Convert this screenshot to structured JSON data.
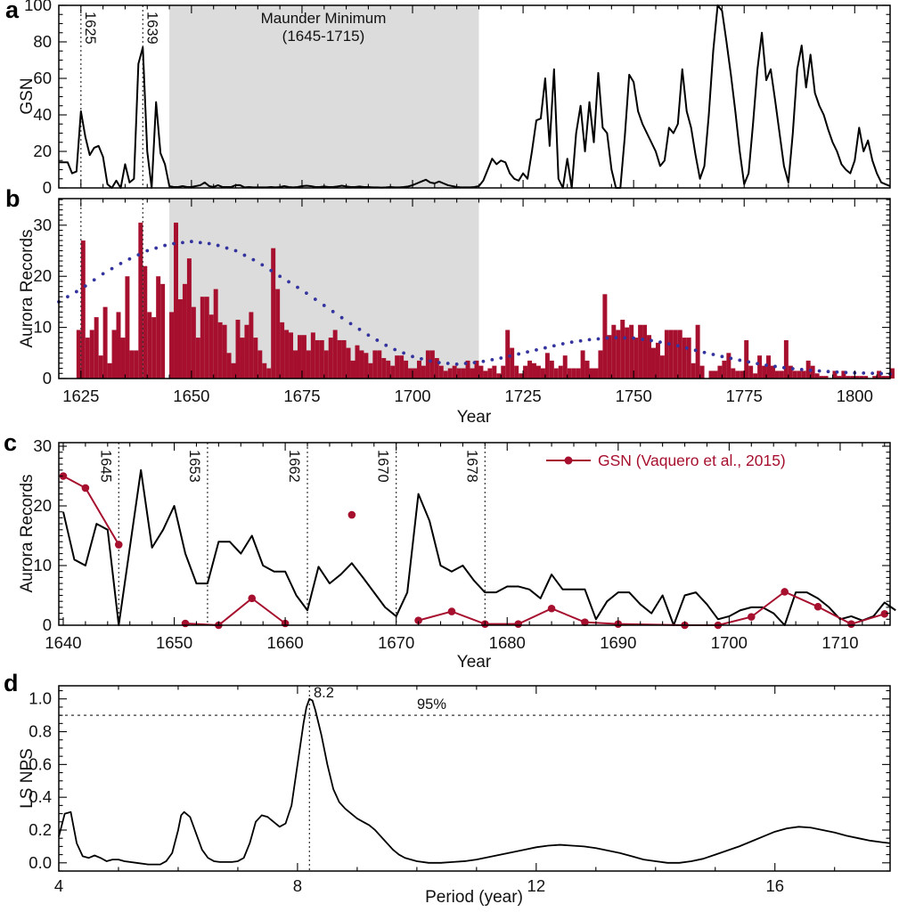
{
  "labels": {
    "panel_a": "a",
    "panel_b": "b",
    "panel_c": "c",
    "panel_d": "d",
    "ylabel_a": "GSN",
    "ylabel_b": "Aurora Records",
    "ylabel_c": "Aurora Records",
    "ylabel_d": "LS NPS",
    "xlabel_b": "Year",
    "xlabel_c": "Year",
    "xlabel_d": "Period (year)",
    "maunder_line1": "Maunder Minimum",
    "maunder_line2": "(1645-1715)",
    "legend_gsn": "GSN (Vaquero et al., 2015)",
    "peak_label": "8.2",
    "significance_label": "95%"
  },
  "colors": {
    "crimson": "#a60f2d",
    "blue": "#34349e",
    "shade": "#dcdcdc",
    "line": "#000000",
    "dash": "#333333"
  },
  "chart_data": [
    {
      "id": "a",
      "type": "line",
      "ylabel": "GSN",
      "xlim": [
        1620,
        1808
      ],
      "ylim": [
        0,
        100
      ],
      "xticks": [
        1625,
        1650,
        1675,
        1700,
        1725,
        1750,
        1775,
        1800
      ],
      "xminor": 5,
      "yticks": [
        0,
        20,
        40,
        60,
        80,
        100
      ],
      "yminor": 5,
      "vlines": [
        {
          "x": 1625,
          "label": "1625"
        },
        {
          "x": 1639,
          "label": "1639"
        }
      ],
      "shading": {
        "from": 1645,
        "to": 1715,
        "label": "Maunder Minimum (1645-1715)"
      },
      "series": {
        "start_year": 1620,
        "values": [
          14,
          14,
          14,
          8,
          9,
          42,
          28,
          18,
          22,
          23,
          17,
          2,
          0,
          4,
          0,
          13,
          3,
          5,
          68,
          77,
          20,
          0,
          47,
          19,
          13,
          1,
          0.5,
          0.5,
          1,
          0.5,
          0.5,
          1,
          1.5,
          3,
          1,
          0.5,
          1.5,
          0.5,
          0.5,
          0.5,
          1.5,
          1.5,
          0.3,
          0.5,
          0.3,
          0.3,
          0.3,
          0.3,
          0.5,
          0.3,
          0.5,
          1,
          0.5,
          0.3,
          0.5,
          1,
          1.2,
          1,
          0.5,
          0.5,
          0.8,
          0.5,
          0.5,
          0.8,
          1.2,
          0.8,
          0.5,
          0.5,
          0.8,
          0.5,
          0.5,
          0.3,
          0.3,
          0.2,
          0.3,
          0.5,
          0.3,
          0.3,
          0.5,
          0.8,
          1.5,
          2.5,
          3.5,
          4.5,
          3,
          2.5,
          3.5,
          2.5,
          1.5,
          1,
          0.5,
          0.3,
          0.3,
          0.3,
          0.5,
          1,
          4,
          10,
          16,
          13,
          15,
          14,
          8,
          5,
          4,
          8,
          5,
          20,
          37,
          38,
          60,
          23,
          65,
          5,
          0,
          16,
          0,
          30,
          45,
          20,
          47,
          25,
          63,
          33,
          30,
          10,
          0,
          0,
          28,
          62,
          58,
          42,
          35,
          30,
          25,
          20,
          12,
          15,
          33,
          30,
          35,
          65,
          42,
          33,
          18,
          5,
          12,
          40,
          75,
          100,
          97,
          80,
          62,
          42,
          20,
          2,
          8,
          35,
          65,
          85,
          59,
          65,
          48,
          30,
          12,
          3,
          30,
          65,
          78,
          55,
          73,
          52,
          45,
          40,
          32,
          25,
          20,
          13,
          10,
          8,
          15,
          33,
          20,
          26,
          15,
          8,
          3,
          2,
          1
        ]
      }
    },
    {
      "id": "b",
      "type": "bar",
      "ylabel": "Aurora Records",
      "xlabel": "Year",
      "xlim": [
        1620,
        1808
      ],
      "ylim": [
        0,
        35.2
      ],
      "xticks": [
        1625,
        1650,
        1675,
        1700,
        1725,
        1750,
        1775,
        1800
      ],
      "xminor": 5,
      "yticks": [
        0,
        10,
        20,
        30
      ],
      "yminor": 1,
      "vlines": [
        {
          "x": 1625,
          "label": ""
        },
        {
          "x": 1639,
          "label": ""
        }
      ],
      "shading": {
        "from": 1645,
        "to": 1715
      },
      "bars": {
        "start_year": 1624,
        "values": [
          9.5,
          27,
          8,
          9.5,
          12,
          4.5,
          14,
          3,
          9.5,
          13,
          8,
          20,
          5.5,
          5.5,
          30.5,
          22,
          13,
          12,
          20,
          18.5,
          0,
          13,
          30.5,
          15.5,
          18.5,
          23.5,
          14,
          8,
          16,
          16,
          12.5,
          17.5,
          11,
          10.5,
          5,
          3,
          11.5,
          8,
          10.5,
          13,
          8,
          5.5,
          3,
          2,
          25.5,
          17.5,
          11,
          9.5,
          9,
          5.5,
          8.5,
          8.5,
          5.5,
          9,
          7.5,
          7.5,
          5.5,
          8,
          9.5,
          7.5,
          7.5,
          6,
          3.5,
          6.5,
          5.5,
          5,
          3,
          5.5,
          5.5,
          4,
          3.5,
          2.5,
          4.5,
          4.5,
          3.5,
          2,
          2,
          3.5,
          2.5,
          5.5,
          5.5,
          4,
          2.5,
          1.5,
          2,
          2.5,
          2,
          2,
          3.5,
          2,
          3.5,
          2.5,
          1.5,
          2,
          2.5,
          1,
          2.5,
          9.5,
          6,
          2.5,
          1,
          2.5,
          3.5,
          3,
          2.5,
          2,
          5,
          3.5,
          2,
          2.5,
          4.5,
          2,
          2,
          2,
          5.5,
          3.5,
          2,
          2,
          5.5,
          16.5,
          8.5,
          10.5,
          9.5,
          11.5,
          10,
          10.5,
          8,
          10.5,
          10.5,
          8.5,
          6,
          7,
          4.5,
          9.5,
          9.5,
          9.5,
          9.5,
          8,
          8,
          3,
          10.5,
          2.5,
          0,
          1.5,
          1.5,
          2.5,
          3.5,
          5,
          2,
          1.5,
          1.5,
          7.5,
          2.5,
          1,
          4.5,
          2.5,
          4.5,
          2.5,
          1.5,
          1.5,
          7.5,
          2.5,
          1.5,
          1.5,
          1.5,
          3.5,
          2.5,
          1,
          0.5,
          0.5,
          0,
          1.5,
          0.5,
          1.5,
          0.5,
          0.5,
          0.5,
          0.5,
          0.5,
          0,
          0.5,
          1.5,
          0.5,
          0.5,
          2
        ]
      },
      "dotted_line": {
        "anchors": [
          [
            1620,
            15
          ],
          [
            1625,
            17.5
          ],
          [
            1630,
            20.5
          ],
          [
            1635,
            23
          ],
          [
            1640,
            25
          ],
          [
            1645,
            26.3
          ],
          [
            1650,
            26.8
          ],
          [
            1655,
            26.3
          ],
          [
            1660,
            25
          ],
          [
            1665,
            22.8
          ],
          [
            1670,
            20
          ],
          [
            1675,
            17.3
          ],
          [
            1680,
            14.3
          ],
          [
            1685,
            11.3
          ],
          [
            1690,
            8.5
          ],
          [
            1695,
            6
          ],
          [
            1700,
            4.3
          ],
          [
            1705,
            3.2
          ],
          [
            1710,
            2.8
          ],
          [
            1715,
            3.2
          ],
          [
            1720,
            4
          ],
          [
            1725,
            5
          ],
          [
            1730,
            6
          ],
          [
            1735,
            7
          ],
          [
            1740,
            7.6
          ],
          [
            1745,
            8
          ],
          [
            1750,
            7.9
          ],
          [
            1755,
            7.3
          ],
          [
            1760,
            6.4
          ],
          [
            1765,
            5.3
          ],
          [
            1770,
            4.3
          ],
          [
            1775,
            3.4
          ],
          [
            1780,
            2.6
          ],
          [
            1785,
            2
          ],
          [
            1790,
            1.6
          ],
          [
            1795,
            1.3
          ],
          [
            1800,
            1.1
          ],
          [
            1805,
            1
          ],
          [
            1808,
            0.9
          ]
        ]
      }
    },
    {
      "id": "c",
      "type": "line",
      "ylabel": "Aurora Records",
      "xlabel": "Year",
      "xlim": [
        1639.6,
        1714.5
      ],
      "ylim": [
        0,
        30.6
      ],
      "xticks": [
        1640,
        1650,
        1660,
        1670,
        1680,
        1690,
        1700,
        1710
      ],
      "xminor": 2,
      "yticks": [
        0,
        10,
        20,
        30
      ],
      "yminor": 1,
      "vlines": [
        {
          "x": 1645,
          "label": "1645"
        },
        {
          "x": 1653,
          "label": "1653"
        },
        {
          "x": 1662,
          "label": "1662"
        },
        {
          "x": 1670,
          "label": "1670"
        },
        {
          "x": 1678,
          "label": "1678"
        }
      ],
      "aurora_series": {
        "start_year": 1640,
        "values": [
          19,
          11,
          10,
          17,
          16,
          0,
          13,
          26,
          13,
          16,
          20,
          12,
          7,
          7,
          14,
          14,
          12,
          15,
          10,
          9,
          9,
          5,
          2.5,
          9.8,
          7,
          8.5,
          10.4,
          8,
          5.5,
          3,
          1.5,
          5.5,
          22,
          17.5,
          10,
          9,
          10,
          7.5,
          5.5,
          5.5,
          6.5,
          6.5,
          6,
          4.5,
          8.5,
          6,
          6,
          6,
          1,
          4,
          5.5,
          5.5,
          3.5,
          2,
          5,
          0,
          5,
          5.5,
          3.5,
          1,
          1.5,
          2.5,
          3,
          3,
          2,
          0,
          5.5,
          5.5,
          4.5,
          3,
          1,
          1.5,
          0.8,
          1.5,
          3.8,
          2.5
        ]
      },
      "gsn_series": {
        "name": "GSN (Vaquero et al., 2015)",
        "segments": [
          [
            [
              1640,
              25
            ],
            [
              1642,
              23
            ],
            [
              1645,
              13.5
            ]
          ],
          [
            [
              1651,
              0.3
            ],
            [
              1654,
              0
            ],
            [
              1657,
              4.5
            ],
            [
              1660,
              0.3
            ]
          ],
          [
            [
              1672,
              0.8
            ],
            [
              1675,
              2.3
            ],
            [
              1678,
              0.2
            ],
            [
              1681,
              0.2
            ],
            [
              1684,
              2.8
            ],
            [
              1687,
              0.5
            ],
            [
              1690,
              0.2
            ],
            [
              1696,
              0
            ],
            [
              1699,
              0
            ],
            [
              1702,
              1.4
            ],
            [
              1705,
              5.6
            ],
            [
              1708,
              3.1
            ],
            [
              1711,
              0.2
            ],
            [
              1714,
              1.9
            ]
          ]
        ],
        "isolated_points": [
          [
            1666,
            18.5
          ]
        ]
      }
    },
    {
      "id": "d",
      "type": "line",
      "ylabel": "LS NPS",
      "xlabel": "Period (year)",
      "xlim": [
        4,
        17.93
      ],
      "ylim": [
        -0.05,
        1.08
      ],
      "xticks": [
        4,
        8,
        12,
        16
      ],
      "xminor": 1,
      "yticks": [
        0.0,
        0.2,
        0.4,
        0.6,
        0.8,
        1.0
      ],
      "yminor": 0.05,
      "peak": {
        "x": 8.2,
        "label": "8.2"
      },
      "significance": {
        "y": 0.9,
        "label": "95%"
      },
      "curve": [
        [
          4,
          0.16
        ],
        [
          4.1,
          0.3
        ],
        [
          4.2,
          0.31
        ],
        [
          4.3,
          0.12
        ],
        [
          4.4,
          0.04
        ],
        [
          4.5,
          0.03
        ],
        [
          4.6,
          0.045
        ],
        [
          4.7,
          0.03
        ],
        [
          4.8,
          0.01
        ],
        [
          4.9,
          0.02
        ],
        [
          5.0,
          0.02
        ],
        [
          5.1,
          0.01
        ],
        [
          5.3,
          0
        ],
        [
          5.5,
          -0.01
        ],
        [
          5.7,
          -0.01
        ],
        [
          5.8,
          0.01
        ],
        [
          5.9,
          0.06
        ],
        [
          6.0,
          0.2
        ],
        [
          6.05,
          0.29
        ],
        [
          6.1,
          0.31
        ],
        [
          6.2,
          0.28
        ],
        [
          6.3,
          0.18
        ],
        [
          6.4,
          0.08
        ],
        [
          6.5,
          0.03
        ],
        [
          6.6,
          0.01
        ],
        [
          6.7,
          0.005
        ],
        [
          6.8,
          0.005
        ],
        [
          6.9,
          0.005
        ],
        [
          7.0,
          0.01
        ],
        [
          7.1,
          0.03
        ],
        [
          7.2,
          0.12
        ],
        [
          7.3,
          0.25
        ],
        [
          7.4,
          0.29
        ],
        [
          7.5,
          0.28
        ],
        [
          7.6,
          0.25
        ],
        [
          7.7,
          0.22
        ],
        [
          7.8,
          0.24
        ],
        [
          7.9,
          0.35
        ],
        [
          8.0,
          0.6
        ],
        [
          8.1,
          0.85
        ],
        [
          8.15,
          0.95
        ],
        [
          8.2,
          1.0
        ],
        [
          8.25,
          0.99
        ],
        [
          8.3,
          0.93
        ],
        [
          8.4,
          0.78
        ],
        [
          8.5,
          0.6
        ],
        [
          8.6,
          0.45
        ],
        [
          8.7,
          0.37
        ],
        [
          8.8,
          0.33
        ],
        [
          8.9,
          0.3
        ],
        [
          9.0,
          0.27
        ],
        [
          9.1,
          0.25
        ],
        [
          9.2,
          0.23
        ],
        [
          9.3,
          0.2
        ],
        [
          9.4,
          0.16
        ],
        [
          9.5,
          0.12
        ],
        [
          9.6,
          0.08
        ],
        [
          9.7,
          0.05
        ],
        [
          9.8,
          0.03
        ],
        [
          9.9,
          0.02
        ],
        [
          10.0,
          0.01
        ],
        [
          10.2,
          0
        ],
        [
          10.4,
          0
        ],
        [
          10.6,
          0.005
        ],
        [
          10.8,
          0.01
        ],
        [
          11.0,
          0.02
        ],
        [
          11.2,
          0.035
        ],
        [
          11.4,
          0.05
        ],
        [
          11.6,
          0.065
        ],
        [
          11.8,
          0.08
        ],
        [
          12.0,
          0.095
        ],
        [
          12.2,
          0.105
        ],
        [
          12.4,
          0.11
        ],
        [
          12.6,
          0.105
        ],
        [
          12.8,
          0.1
        ],
        [
          13.0,
          0.09
        ],
        [
          13.2,
          0.075
        ],
        [
          13.4,
          0.06
        ],
        [
          13.6,
          0.04
        ],
        [
          13.8,
          0.02
        ],
        [
          14.0,
          0.01
        ],
        [
          14.2,
          0
        ],
        [
          14.4,
          0
        ],
        [
          14.6,
          0.01
        ],
        [
          14.8,
          0.025
        ],
        [
          15.0,
          0.05
        ],
        [
          15.2,
          0.075
        ],
        [
          15.4,
          0.1
        ],
        [
          15.6,
          0.13
        ],
        [
          15.8,
          0.16
        ],
        [
          16.0,
          0.19
        ],
        [
          16.2,
          0.21
        ],
        [
          16.4,
          0.22
        ],
        [
          16.6,
          0.215
        ],
        [
          16.8,
          0.2
        ],
        [
          17.0,
          0.185
        ],
        [
          17.2,
          0.165
        ],
        [
          17.4,
          0.15
        ],
        [
          17.6,
          0.135
        ],
        [
          17.8,
          0.125
        ],
        [
          17.93,
          0.12
        ]
      ]
    }
  ]
}
